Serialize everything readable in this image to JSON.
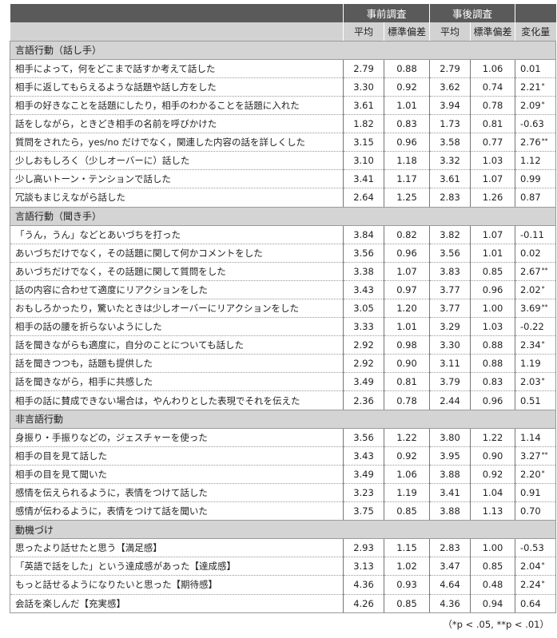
{
  "header": {
    "pre": "事前調査",
    "post": "事後調査",
    "mean": "平均",
    "sd": "標準偏差",
    "change": "変化量"
  },
  "sections": [
    {
      "title": "言語行動（話し手）",
      "rows": [
        [
          "相手によって，何をどこまで話すか考えて話した",
          "2.79",
          "0.88",
          "2.79",
          "1.06",
          "0.01",
          ""
        ],
        [
          "相手に返してもらえるような話題や話し方をした",
          "3.30",
          "0.92",
          "3.62",
          "0.74",
          "2.21",
          "*"
        ],
        [
          "相手の好きなことを話題にしたり，相手のわかることを話題に入れた",
          "3.61",
          "1.01",
          "3.94",
          "0.78",
          "2.09",
          "*"
        ],
        [
          "話をしながら，ときどき相手の名前を呼びかけた",
          "1.82",
          "0.83",
          "1.73",
          "0.81",
          "-0.63",
          ""
        ],
        [
          "質問をされたら，yes/no だけでなく，関連した内容の話を詳しくした",
          "3.15",
          "0.96",
          "3.58",
          "0.77",
          "2.76",
          "**"
        ],
        [
          "少しおもしろく（少しオーバーに）話した",
          "3.10",
          "1.18",
          "3.32",
          "1.03",
          "1.12",
          ""
        ],
        [
          "少し高いトーン・テンションで話した",
          "3.41",
          "1.17",
          "3.61",
          "1.07",
          "0.99",
          ""
        ],
        [
          "冗談もまじえながら話した",
          "2.64",
          "1.25",
          "2.83",
          "1.26",
          "0.87",
          ""
        ]
      ]
    },
    {
      "title": "言語行動（聞き手）",
      "rows": [
        [
          "「うん，うん」などとあいづちを打った",
          "3.84",
          "0.82",
          "3.82",
          "1.07",
          "-0.11",
          ""
        ],
        [
          "あいづちだけでなく，その話題に関して何かコメントをした",
          "3.56",
          "0.96",
          "3.56",
          "1.01",
          "0.02",
          ""
        ],
        [
          "あいづちだけでなく，その話題に関して質問をした",
          "3.38",
          "1.07",
          "3.83",
          "0.85",
          "2.67",
          "**"
        ],
        [
          "話の内容に合わせて適度にリアクションをした",
          "3.43",
          "0.97",
          "3.77",
          "0.96",
          "2.02",
          "*"
        ],
        [
          "おもしろかったり，驚いたときは少しオーバーにリアクションをした",
          "3.05",
          "1.20",
          "3.77",
          "1.00",
          "3.69",
          "**"
        ],
        [
          "相手の話の腰を折らないようにした",
          "3.33",
          "1.01",
          "3.29",
          "1.03",
          "-0.22",
          ""
        ],
        [
          "話を聞きながらも適度に，自分のことについても話した",
          "2.92",
          "0.98",
          "3.30",
          "0.88",
          "2.34",
          "*"
        ],
        [
          "話を聞きつつも，話題も提供した",
          "2.92",
          "0.90",
          "3.11",
          "0.88",
          "1.19",
          ""
        ],
        [
          "話を聞きながら，相手に共感した",
          "3.49",
          "0.81",
          "3.79",
          "0.83",
          "2.03",
          "*"
        ],
        [
          "相手の話に賛成できない場合は，やんわりとした表現でそれを伝えた",
          "2.36",
          "0.78",
          "2.44",
          "0.96",
          "0.51",
          ""
        ]
      ]
    },
    {
      "title": "非言語行動",
      "rows": [
        [
          "身振り・手振りなどの，ジェスチャーを使った",
          "3.56",
          "1.22",
          "3.80",
          "1.22",
          "1.14",
          ""
        ],
        [
          "相手の目を見て話した",
          "3.43",
          "0.92",
          "3.95",
          "0.90",
          "3.27",
          "**"
        ],
        [
          "相手の目を見て聞いた",
          "3.49",
          "1.06",
          "3.88",
          "0.92",
          "2.20",
          "*"
        ],
        [
          "感情を伝えられるように，表情をつけて話した",
          "3.23",
          "1.19",
          "3.41",
          "1.04",
          "0.91",
          ""
        ],
        [
          "感情が伝わるように，表情をつけて話を聞いた",
          "3.75",
          "0.85",
          "3.88",
          "1.13",
          "0.70",
          ""
        ]
      ]
    },
    {
      "title": "動機づけ",
      "rows": [
        [
          "思ったより話せたと思う【満足感】",
          "2.93",
          "1.15",
          "2.83",
          "1.00",
          "-0.53",
          ""
        ],
        [
          "「英語で話をした」という達成感があった【達成感】",
          "3.13",
          "1.02",
          "3.47",
          "0.85",
          "2.04",
          "*"
        ],
        [
          "もっと話せるようになりたいと思った【期待感】",
          "4.36",
          "0.93",
          "4.64",
          "0.48",
          "2.24",
          "*"
        ],
        [
          "会話を楽しんだ【充実感】",
          "4.26",
          "0.85",
          "4.36",
          "0.94",
          "0.64",
          ""
        ]
      ]
    }
  ],
  "footnote": "（*p < .05,  **p < .01）"
}
